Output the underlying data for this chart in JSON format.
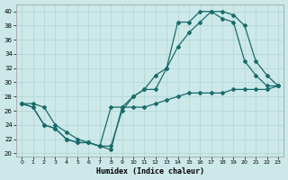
{
  "xlabel": "Humidex (Indice chaleur)",
  "bg_color": "#cce8e8",
  "grid_color": "#b0d4d4",
  "line_color": "#1a6b6b",
  "xlim": [
    -0.5,
    23.5
  ],
  "ylim": [
    19.5,
    41.0
  ],
  "xticks": [
    0,
    1,
    2,
    3,
    4,
    5,
    6,
    7,
    8,
    9,
    10,
    11,
    12,
    13,
    14,
    15,
    16,
    17,
    18,
    19,
    20,
    21,
    22,
    23
  ],
  "yticks": [
    20,
    22,
    24,
    26,
    28,
    30,
    32,
    34,
    36,
    38,
    40
  ],
  "line1_x": [
    0,
    1,
    2,
    3,
    4,
    5,
    6,
    7,
    8,
    9,
    10,
    11,
    12,
    13,
    14,
    15,
    16,
    17,
    18,
    19,
    20,
    21,
    22,
    23
  ],
  "line1_y": [
    27,
    26.5,
    24,
    23.5,
    22,
    21.5,
    21.5,
    21,
    20.5,
    26.5,
    28,
    29,
    29,
    32,
    35,
    37,
    38.5,
    40,
    40,
    39.5,
    38,
    33,
    31,
    29.5
  ],
  "line2_x": [
    0,
    1,
    2,
    3,
    4,
    5,
    6,
    7,
    8,
    9,
    10,
    11,
    12,
    13,
    14,
    15,
    16,
    17,
    18,
    19,
    20,
    21,
    22,
    23
  ],
  "line2_y": [
    27,
    26.5,
    24,
    23.5,
    22,
    21.5,
    21.5,
    21,
    21,
    26,
    28,
    29,
    31,
    32,
    38.5,
    38.5,
    40,
    40,
    39,
    38.5,
    33,
    31,
    29.5,
    29.5
  ],
  "line3_x": [
    0,
    1,
    2,
    3,
    4,
    5,
    6,
    7,
    8,
    9,
    10,
    11,
    12,
    13,
    14,
    15,
    16,
    17,
    18,
    19,
    20,
    21,
    22,
    23
  ],
  "line3_y": [
    27,
    27,
    26.5,
    24,
    23,
    22,
    21.5,
    21,
    26.5,
    26.5,
    26.5,
    26.5,
    27,
    27.5,
    28,
    28.5,
    28.5,
    28.5,
    28.5,
    29,
    29,
    29,
    29,
    29.5
  ]
}
